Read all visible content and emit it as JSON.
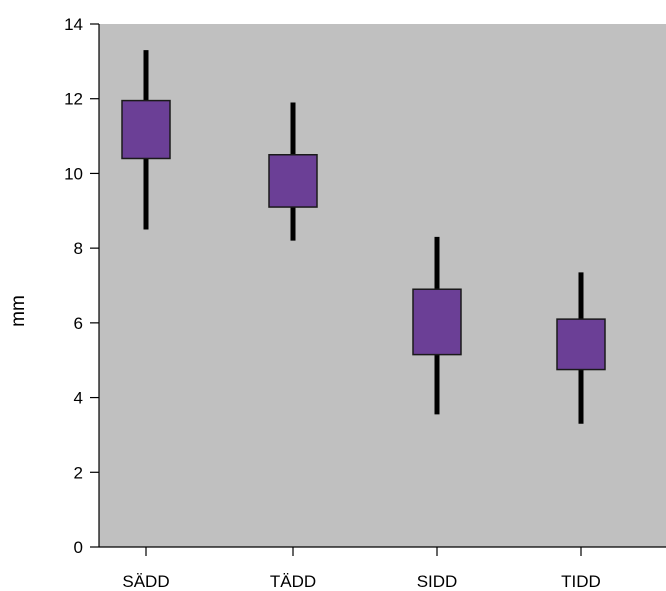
{
  "chart_data": {
    "type": "boxplot",
    "title": "",
    "xlabel": "",
    "ylabel": "mm",
    "ylim": [
      0,
      14
    ],
    "yticks": [
      "0",
      "2",
      "4",
      "6",
      "8",
      "10",
      "12",
      "14"
    ],
    "grid": false,
    "categories": [
      "SÄDD",
      "TÄDD",
      "SIDD",
      "TIDD"
    ],
    "boxes": [
      {
        "category": "SÄDD",
        "whisker_low": 8.5,
        "box_low": 10.4,
        "box_high": 11.95,
        "whisker_high": 13.3
      },
      {
        "category": "TÄDD",
        "whisker_low": 8.2,
        "box_low": 9.1,
        "box_high": 10.5,
        "whisker_high": 11.9
      },
      {
        "category": "SIDD",
        "whisker_low": 3.55,
        "box_low": 5.15,
        "box_high": 6.9,
        "whisker_high": 8.3
      },
      {
        "category": "TIDD",
        "whisker_low": 3.3,
        "box_low": 4.75,
        "box_high": 6.1,
        "whisker_high": 7.35
      }
    ],
    "colors": {
      "plot_background": "#c0c0c0",
      "box_fill": "#6b3f96",
      "box_stroke": "#1a1a1a",
      "whisker": "#000000"
    }
  }
}
